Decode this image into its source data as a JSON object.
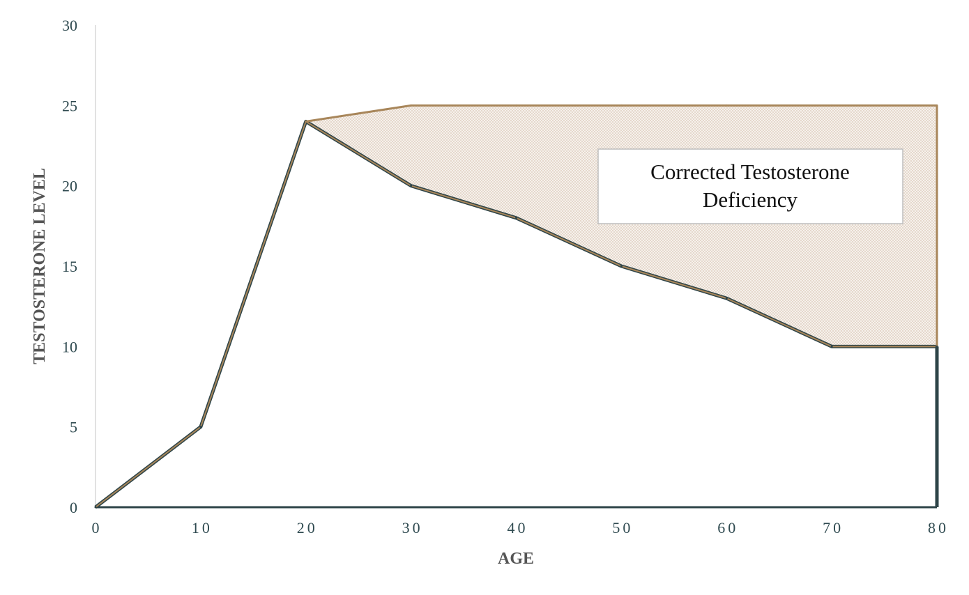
{
  "chart_data": {
    "type": "area",
    "title": "",
    "xlabel": "AGE",
    "ylabel": "TESTOSTERONE LEVEL",
    "xlim": [
      0,
      80
    ],
    "ylim": [
      0,
      30
    ],
    "x_ticks": [
      0,
      10,
      20,
      30,
      40,
      50,
      60,
      70,
      80
    ],
    "y_ticks": [
      0,
      5,
      10,
      15,
      20,
      25,
      30
    ],
    "grid": false,
    "legend": "none",
    "series": [
      {
        "role": "natural-decline",
        "x": [
          0,
          10,
          20,
          30,
          40,
          50,
          60,
          70,
          80
        ],
        "values": [
          0,
          5,
          24,
          20,
          18,
          15,
          13,
          10,
          10
        ],
        "color": "#2e4448",
        "fill": "none"
      },
      {
        "role": "corrected-upper",
        "x": [
          20,
          30,
          40,
          50,
          60,
          70,
          80
        ],
        "values": [
          24,
          25,
          25,
          25,
          25,
          25,
          25
        ],
        "color": "#a8865a",
        "fill": "#ede3d9"
      }
    ],
    "annotations": [
      {
        "text_lines": [
          "Corrected Testosterone",
          "Deficiency"
        ]
      }
    ]
  }
}
